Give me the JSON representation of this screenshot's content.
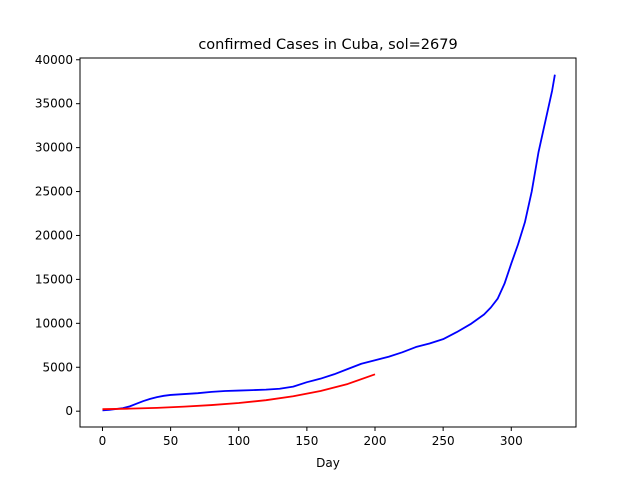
{
  "chart_data": {
    "type": "line",
    "title": "confirmed Cases in Cuba, sol=2679",
    "xlabel": "Day",
    "ylabel": "",
    "xlim": [
      -16.5,
      347.5
    ],
    "ylim": [
      -1800,
      40200
    ],
    "xticks": [
      0,
      50,
      100,
      150,
      200,
      250,
      300
    ],
    "yticks": [
      0,
      5000,
      10000,
      15000,
      20000,
      25000,
      30000,
      35000,
      40000
    ],
    "grid": false,
    "legend": "none",
    "series": [
      {
        "color": "#0000ff",
        "x": [
          0,
          5,
          10,
          15,
          20,
          25,
          30,
          35,
          40,
          45,
          50,
          60,
          70,
          80,
          90,
          100,
          110,
          120,
          130,
          140,
          150,
          160,
          170,
          180,
          190,
          200,
          210,
          220,
          230,
          240,
          250,
          260,
          270,
          280,
          285,
          290,
          295,
          300,
          305,
          310,
          315,
          320,
          325,
          330,
          332
        ],
        "y": [
          100,
          150,
          250,
          350,
          550,
          850,
          1150,
          1400,
          1600,
          1750,
          1850,
          1950,
          2050,
          2200,
          2300,
          2350,
          2400,
          2450,
          2550,
          2800,
          3300,
          3700,
          4200,
          4800,
          5400,
          5800,
          6200,
          6700,
          7300,
          7700,
          8200,
          9000,
          9900,
          11000,
          11800,
          12800,
          14500,
          16800,
          19000,
          21500,
          25000,
          29500,
          33000,
          36500,
          38300
        ]
      },
      {
        "color": "#ff0000",
        "x": [
          0,
          20,
          40,
          60,
          80,
          100,
          120,
          140,
          160,
          180,
          200
        ],
        "y": [
          230,
          290,
          380,
          520,
          700,
          930,
          1250,
          1700,
          2300,
          3100,
          4200
        ]
      }
    ]
  }
}
